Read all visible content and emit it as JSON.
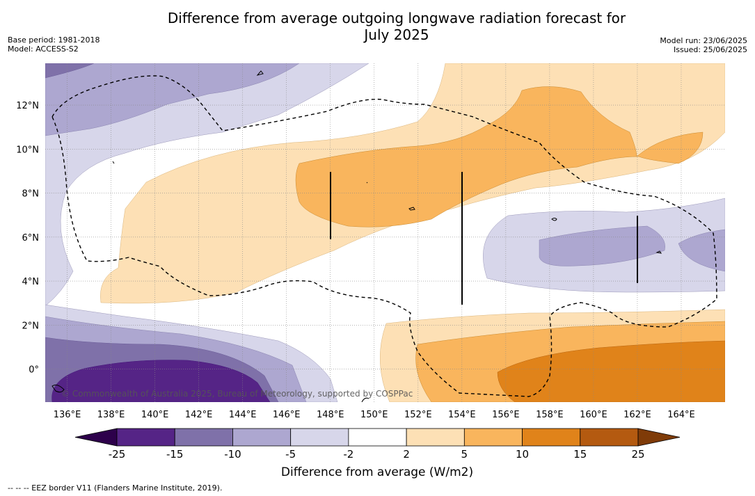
{
  "title": {
    "line1": "Difference from average outgoing longwave radiation forecast for",
    "line2": "July 2025"
  },
  "meta": {
    "base_period": "Base period: 1981-2018",
    "model": "Model: ACCESS-S2",
    "model_run": "Model run: 23/06/2025",
    "issued": "Issued: 25/06/2025"
  },
  "map": {
    "lat_ticks": [
      "12°N",
      "10°N",
      "8°N",
      "6°N",
      "4°N",
      "2°N",
      "0°"
    ],
    "lon_ticks": [
      "136°E",
      "138°E",
      "140°E",
      "142°E",
      "144°E",
      "146°E",
      "148°E",
      "150°E",
      "152°E",
      "154°E",
      "156°E",
      "158°E",
      "160°E",
      "162°E",
      "164°E"
    ],
    "lon_range": [
      135,
      166
    ],
    "lat_range": [
      -1.5,
      13.9
    ],
    "copyright": "© Commonwealth of Australia 2025, Bureau of Meteorology, supported by COSPPac"
  },
  "colorbar": {
    "ticks": [
      "-25",
      "-15",
      "-10",
      "-5",
      "-2",
      "2",
      "5",
      "10",
      "15",
      "25"
    ],
    "colors": [
      "#552486",
      "#7f71a9",
      "#ada7d0",
      "#d7d6ea",
      "#ffffff",
      "#fde0b5",
      "#f9b55d",
      "#e0831a",
      "#b45a10"
    ],
    "under_color": "#2d004b",
    "over_color": "#7f3b08",
    "label": "Difference from average (W/m2)"
  },
  "footnote": "--  --  -- EEZ border V11 (Flanders Marine Institute, 2019)."
}
